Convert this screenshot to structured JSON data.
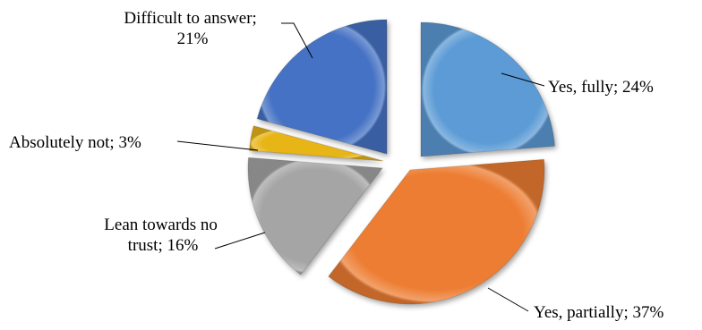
{
  "chart_data": {
    "type": "pie",
    "title": "",
    "exploded": true,
    "style": "3d-beveled",
    "slices": [
      {
        "name": "Yes, fully",
        "value": 24,
        "label_lines": [
          "Yes, fully; 24%"
        ],
        "color": "#5B9BD5"
      },
      {
        "name": "Yes, partially",
        "value": 37,
        "label_lines": [
          "Yes, partially; 37%"
        ],
        "color": "#ED7D31"
      },
      {
        "name": "Lean towards no trust",
        "value": 16,
        "label_lines": [
          "Lean towards no",
          "trust; 16%"
        ],
        "color": "#A5A5A5"
      },
      {
        "name": "Absolutely not",
        "value": 3,
        "label_lines": [
          "Absolutely not; 3%"
        ],
        "color": "#E8B516"
      },
      {
        "name": "Difficult to answer",
        "value": 21,
        "label_lines": [
          "Difficult to answer;",
          "21%"
        ],
        "color": "#4472C4"
      }
    ]
  }
}
